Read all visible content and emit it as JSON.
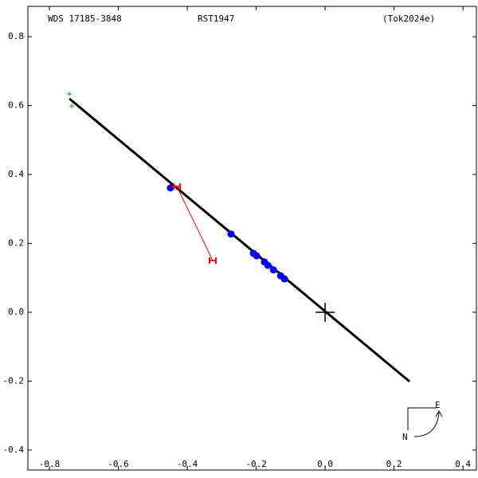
{
  "chart_data": {
    "type": "scatter",
    "header": [
      "WDS 17185-3848",
      "RST1947",
      "(Tok2024e)"
    ],
    "compass": [
      "E",
      "N"
    ],
    "xlim": [
      -0.8625,
      0.439
    ],
    "ylim": [
      -0.458,
      0.888
    ],
    "xticks": [
      -0.8,
      -0.6,
      -0.4,
      -0.2,
      {
        "value": 0,
        "label": "0.0"
      },
      0.2,
      0.4
    ],
    "yticks": [
      -0.4,
      -0.2,
      {
        "value": 0,
        "label": "0.0"
      },
      0.2,
      0.4,
      0.6,
      0.8
    ],
    "series": [
      {
        "marker": "line",
        "color": "#000000",
        "x": [
          -0.742,
          0.245
        ],
        "y": [
          0.62,
          -0.201
        ]
      },
      {
        "marker": "circle",
        "color": "#0000ff",
        "x": [
          -0.449,
          -0.273,
          -0.208,
          -0.199,
          -0.176,
          -0.166,
          -0.15,
          -0.129,
          -0.118
        ],
        "y": [
          0.361,
          0.227,
          0.171,
          0.164,
          0.146,
          0.136,
          0.123,
          0.106,
          0.097
        ]
      },
      {
        "marker": "segment",
        "color": "#ff0000",
        "x": [
          -0.43,
          -0.326
        ],
        "y": [
          0.365,
          0.15
        ]
      },
      {
        "marker": "plus",
        "color": "#00aa00",
        "x": [
          -0.742,
          -0.735
        ],
        "y": [
          0.634,
          0.599
        ]
      }
    ]
  }
}
